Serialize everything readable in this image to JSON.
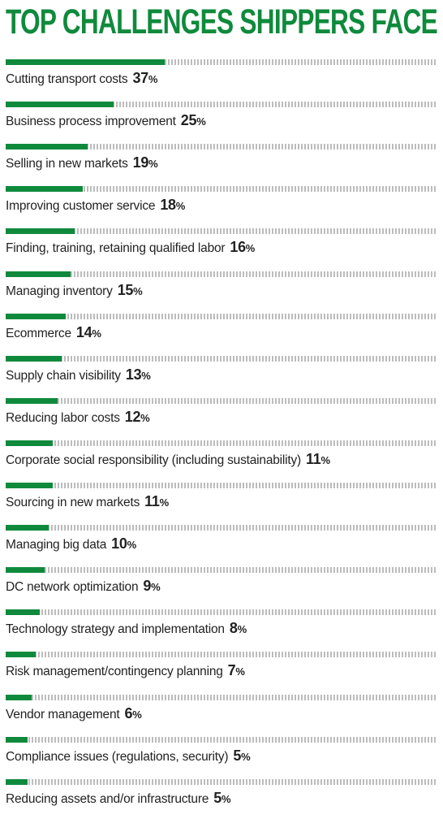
{
  "title": "TOP CHALLENGES SHIPPERS FACE",
  "chart_data": {
    "type": "bar",
    "orientation": "horizontal",
    "title": "TOP CHALLENGES SHIPPERS FACE",
    "unit": "%",
    "xlim": [
      0,
      100
    ],
    "bar_color": "#0f8a3c",
    "track_color": "#bcbcbc",
    "title_color": "#0f8a3c",
    "categories": [
      "Cutting transport costs",
      "Business process improvement",
      "Selling in new markets",
      "Improving customer service",
      "Finding, training, retaining qualified labor",
      "Managing inventory",
      "Ecommerce",
      "Supply chain visibility",
      "Reducing labor costs",
      "Corporate social responsibility (including sustainability)",
      "Sourcing in new markets",
      "Managing big data",
      "DC network optimization",
      "Technology strategy and implementation",
      "Risk management/contingency planning",
      "Vendor management",
      "Compliance issues (regulations, security)",
      "Reducing assets and/or infrastructure"
    ],
    "values": [
      37,
      25,
      19,
      18,
      16,
      15,
      14,
      13,
      12,
      11,
      11,
      10,
      9,
      8,
      7,
      6,
      5,
      5
    ]
  }
}
